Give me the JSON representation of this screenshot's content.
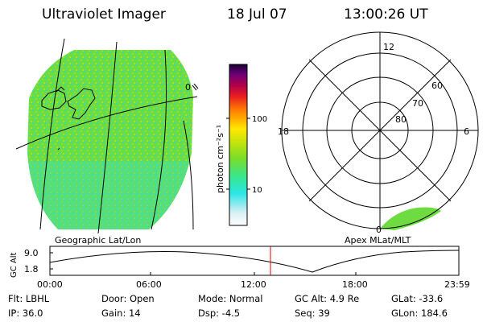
{
  "header": {
    "instrument": "Ultraviolet Imager",
    "date": "18 Jul 07",
    "time": "13:00:26 UT"
  },
  "geo_panel": {
    "label": "Geographic Lat/Lon",
    "edge_label": "0"
  },
  "colorbar": {
    "unit_label": "photon cm⁻²s⁻¹",
    "tick_100": "100",
    "tick_10": "10",
    "colors": [
      "#ffffff",
      "#d0e8f0",
      "#2be6e6",
      "#36e690",
      "#7ddc28",
      "#c8e40c",
      "#ffe800",
      "#ffb000",
      "#ff7a00",
      "#e82020",
      "#b00048",
      "#6a0078",
      "#1a0030"
    ]
  },
  "polar_panel": {
    "label": "Apex MLat/MLT",
    "mlt_top": "12",
    "mlt_left": "18",
    "mlt_right": "6",
    "mlt_bottom": "0",
    "lat_60": "60",
    "lat_70": "70",
    "lat_80": "80"
  },
  "altitude_plot": {
    "ylabel": "GC Alt",
    "ytick_high": "9.0",
    "ytick_low": "1.8",
    "xticks": [
      "00:00",
      "06:00",
      "12:00",
      "18:00",
      "23:59"
    ],
    "marker_color": "#e00000"
  },
  "info": {
    "filter": "Flt: LBHL",
    "ip": "IP: 36.0",
    "door": "Door: Open",
    "gain": "Gain: 14",
    "mode": "Mode: Normal",
    "dsp": "Dsp:    -4.5",
    "gc_alt": "GC Alt: 4.9 Re",
    "seq": "Seq: 39",
    "glat": "GLat:  -33.6",
    "glon": "GLon: 184.6"
  }
}
